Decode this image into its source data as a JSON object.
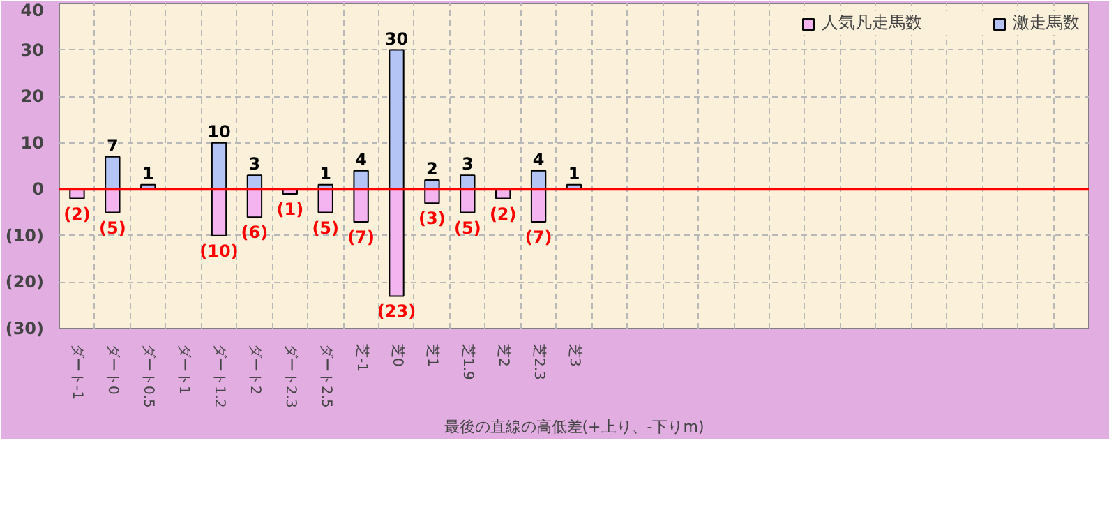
{
  "chart_data": {
    "type": "bar",
    "xlabel": "最後の直線の高低差(+上り、-下りm)",
    "categories": [
      "ダート-1",
      "ダート0",
      "ダート0.5",
      "ダート1",
      "ダート1.2",
      "ダート2",
      "ダート2.3",
      "ダート2.5",
      "芝-1",
      "芝0",
      "芝1",
      "芝1.9",
      "芝2",
      "芝2.3",
      "芝3",
      null,
      null,
      null,
      null,
      null,
      null,
      null,
      null,
      null,
      null,
      null,
      null,
      null,
      null
    ],
    "stacked": true,
    "series": [
      {
        "name": "人気凡走馬数",
        "color": "#f4b4f0",
        "values": [
          -2,
          -5,
          null,
          null,
          -10,
          -6,
          -1,
          -5,
          -7,
          -23,
          -3,
          -5,
          -2,
          -7,
          null,
          null,
          null,
          null,
          null,
          null,
          null,
          null,
          null,
          null,
          null,
          null,
          null,
          null,
          null
        ],
        "value_labels": [
          "(2)",
          "(5)",
          null,
          null,
          "(10)",
          "(6)",
          "(1)",
          "(5)",
          "(7)",
          "(23)",
          "(3)",
          "(5)",
          "(2)",
          "(7)",
          null,
          null,
          null,
          null,
          null,
          null,
          null,
          null,
          null,
          null,
          null,
          null,
          null,
          null,
          null
        ]
      },
      {
        "name": "激走馬数",
        "color": "#b4c4f4",
        "values": [
          null,
          7,
          1,
          null,
          10,
          3,
          null,
          1,
          4,
          30,
          2,
          3,
          null,
          4,
          1,
          null,
          null,
          null,
          null,
          null,
          null,
          null,
          null,
          null,
          null,
          null,
          null,
          null,
          null
        ],
        "value_labels": [
          null,
          "7",
          "1",
          null,
          "10",
          "3",
          null,
          "1",
          "4",
          "30",
          "2",
          "3",
          null,
          "4",
          "1",
          null,
          null,
          null,
          null,
          null,
          null,
          null,
          null,
          null,
          null,
          null,
          null,
          null,
          null
        ]
      }
    ],
    "ylim": [
      -30,
      40
    ],
    "yticks": [
      40,
      30,
      20,
      10,
      0,
      {
        "value": -10,
        "label": "(10)"
      },
      {
        "value": -20,
        "label": "(20)"
      },
      {
        "value": -30,
        "label": "(30)"
      }
    ],
    "ref_lines": [
      {
        "axis": "y",
        "value": 0,
        "color": "#ff0000"
      }
    ],
    "grid": true,
    "legend": "top right"
  }
}
